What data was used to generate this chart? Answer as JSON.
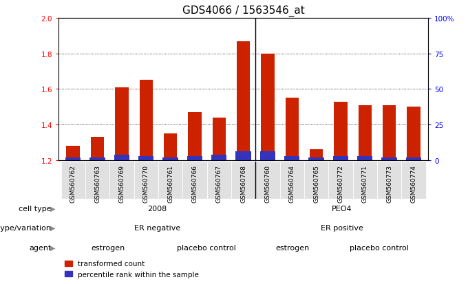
{
  "title": "GDS4066 / 1563546_at",
  "samples": [
    "GSM560762",
    "GSM560763",
    "GSM560769",
    "GSM560770",
    "GSM560761",
    "GSM560766",
    "GSM560767",
    "GSM560768",
    "GSM560760",
    "GSM560764",
    "GSM560765",
    "GSM560772",
    "GSM560771",
    "GSM560773",
    "GSM560774"
  ],
  "red_values": [
    1.28,
    1.33,
    1.61,
    1.65,
    1.35,
    1.47,
    1.44,
    1.87,
    1.8,
    1.55,
    1.26,
    1.53,
    1.51,
    1.51,
    1.5
  ],
  "blue_values": [
    2,
    2,
    4,
    3,
    2,
    3,
    4,
    6,
    6,
    3,
    2,
    3,
    3,
    2,
    2
  ],
  "ymin": 1.2,
  "ymax": 2.0,
  "y_ticks_left": [
    1.2,
    1.4,
    1.6,
    1.8,
    2.0
  ],
  "y_ticks_right": [
    0,
    25,
    50,
    75,
    100
  ],
  "cell_type_groups": [
    {
      "label": "2008",
      "start": 0,
      "end": 8,
      "color": "#aaddaa"
    },
    {
      "label": "PEO4",
      "start": 8,
      "end": 15,
      "color": "#55cc55"
    }
  ],
  "genotype_groups": [
    {
      "label": "ER negative",
      "start": 0,
      "end": 8,
      "color": "#bbbbee"
    },
    {
      "label": "ER positive",
      "start": 8,
      "end": 15,
      "color": "#9999dd"
    }
  ],
  "agent_groups": [
    {
      "label": "estrogen",
      "start": 0,
      "end": 4,
      "color": "#ffcccc"
    },
    {
      "label": "placebo control",
      "start": 4,
      "end": 8,
      "color": "#dd8888"
    },
    {
      "label": "estrogen",
      "start": 8,
      "end": 11,
      "color": "#ffcccc"
    },
    {
      "label": "placebo control",
      "start": 11,
      "end": 15,
      "color": "#dd8888"
    }
  ],
  "red_color": "#cc2200",
  "blue_color": "#3333bb",
  "background_color": "#ffffff",
  "title_fontsize": 11,
  "legend_items": [
    "transformed count",
    "percentile rank within the sample"
  ],
  "tick_fontsize": 7.5
}
